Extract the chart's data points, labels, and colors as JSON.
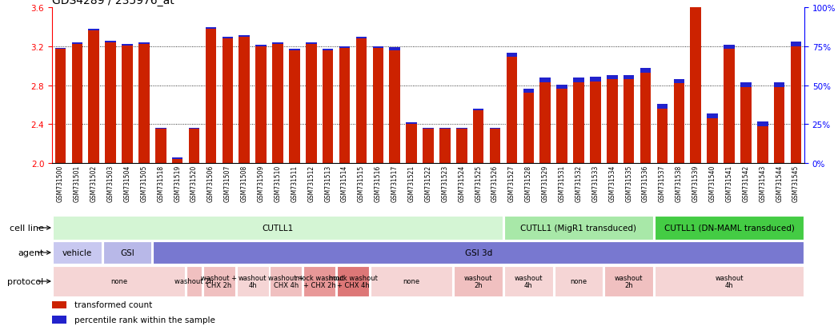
{
  "title": "GDS4289 / 235976_at",
  "ylim_left": [
    2.0,
    3.6
  ],
  "ylim_right": [
    0,
    100
  ],
  "yticks_left": [
    2.0,
    2.4,
    2.8,
    3.2,
    3.6
  ],
  "yticks_right": [
    0,
    25,
    50,
    75,
    100
  ],
  "sample_ids": [
    "GSM731500",
    "GSM731501",
    "GSM731502",
    "GSM731503",
    "GSM731504",
    "GSM731505",
    "GSM731518",
    "GSM731519",
    "GSM731520",
    "GSM731506",
    "GSM731507",
    "GSM731508",
    "GSM731509",
    "GSM731510",
    "GSM731511",
    "GSM731512",
    "GSM731513",
    "GSM731514",
    "GSM731515",
    "GSM731516",
    "GSM731517",
    "GSM731521",
    "GSM731522",
    "GSM731523",
    "GSM731524",
    "GSM731525",
    "GSM731526",
    "GSM731527",
    "GSM731528",
    "GSM731529",
    "GSM731531",
    "GSM731532",
    "GSM731533",
    "GSM731534",
    "GSM731535",
    "GSM731536",
    "GSM731537",
    "GSM731538",
    "GSM731539",
    "GSM731540",
    "GSM731541",
    "GSM731542",
    "GSM731543",
    "GSM731544",
    "GSM731545"
  ],
  "red_values": [
    3.17,
    3.22,
    3.36,
    3.24,
    3.21,
    3.22,
    2.35,
    2.04,
    2.35,
    3.38,
    3.28,
    3.3,
    3.2,
    3.22,
    3.16,
    3.22,
    3.16,
    3.18,
    3.28,
    3.18,
    3.16,
    2.4,
    2.35,
    2.35,
    2.35,
    2.54,
    2.35,
    3.09,
    2.72,
    2.83,
    2.76,
    2.83,
    2.84,
    2.86,
    2.86,
    2.93,
    2.56,
    2.82,
    3.6,
    2.46,
    3.17,
    2.78,
    2.38,
    2.78,
    3.2
  ],
  "blue_heights": [
    0.015,
    0.015,
    0.015,
    0.015,
    0.015,
    0.015,
    0.015,
    0.015,
    0.015,
    0.015,
    0.015,
    0.015,
    0.015,
    0.015,
    0.015,
    0.015,
    0.015,
    0.015,
    0.015,
    0.015,
    0.03,
    0.015,
    0.015,
    0.015,
    0.015,
    0.015,
    0.015,
    0.045,
    0.045,
    0.045,
    0.045,
    0.045,
    0.045,
    0.045,
    0.045,
    0.045,
    0.045,
    0.045,
    0.045,
    0.045,
    0.045,
    0.045,
    0.045,
    0.045,
    0.045
  ],
  "cell_line_groups": [
    {
      "label": "CUTLL1",
      "start": 0,
      "end": 27,
      "color": "#d4f5d4"
    },
    {
      "label": "CUTLL1 (MigR1 transduced)",
      "start": 27,
      "end": 36,
      "color": "#a8e8a8"
    },
    {
      "label": "CUTLL1 (DN-MAML transduced)",
      "start": 36,
      "end": 45,
      "color": "#44cc44"
    }
  ],
  "agent_groups": [
    {
      "label": "vehicle",
      "start": 0,
      "end": 3,
      "color": "#c8c8f0"
    },
    {
      "label": "GSI",
      "start": 3,
      "end": 6,
      "color": "#b8b8e8"
    },
    {
      "label": "GSI 3d",
      "start": 6,
      "end": 45,
      "color": "#7878d0"
    }
  ],
  "protocol_groups": [
    {
      "label": "none",
      "start": 0,
      "end": 8,
      "color": "#f5d5d5"
    },
    {
      "label": "washout 2h",
      "start": 8,
      "end": 9,
      "color": "#f0c0c0"
    },
    {
      "label": "washout +\nCHX 2h",
      "start": 9,
      "end": 11,
      "color": "#f0c0c0"
    },
    {
      "label": "washout\n4h",
      "start": 11,
      "end": 13,
      "color": "#f5d5d5"
    },
    {
      "label": "washout +\nCHX 4h",
      "start": 13,
      "end": 15,
      "color": "#f0c0c0"
    },
    {
      "label": "mock washout\n+ CHX 2h",
      "start": 15,
      "end": 17,
      "color": "#e89898"
    },
    {
      "label": "mock washout\n+ CHX 4h",
      "start": 17,
      "end": 19,
      "color": "#dd7777"
    },
    {
      "label": "none",
      "start": 19,
      "end": 24,
      "color": "#f5d5d5"
    },
    {
      "label": "washout\n2h",
      "start": 24,
      "end": 27,
      "color": "#f0c0c0"
    },
    {
      "label": "washout\n4h",
      "start": 27,
      "end": 30,
      "color": "#f5d5d5"
    },
    {
      "label": "none",
      "start": 30,
      "end": 33,
      "color": "#f5d5d5"
    },
    {
      "label": "washout\n2h",
      "start": 33,
      "end": 36,
      "color": "#f0c0c0"
    },
    {
      "label": "washout\n4h",
      "start": 36,
      "end": 45,
      "color": "#f5d5d5"
    }
  ],
  "bar_color": "#cc2200",
  "blue_color": "#2222cc",
  "background_color": "#ffffff"
}
